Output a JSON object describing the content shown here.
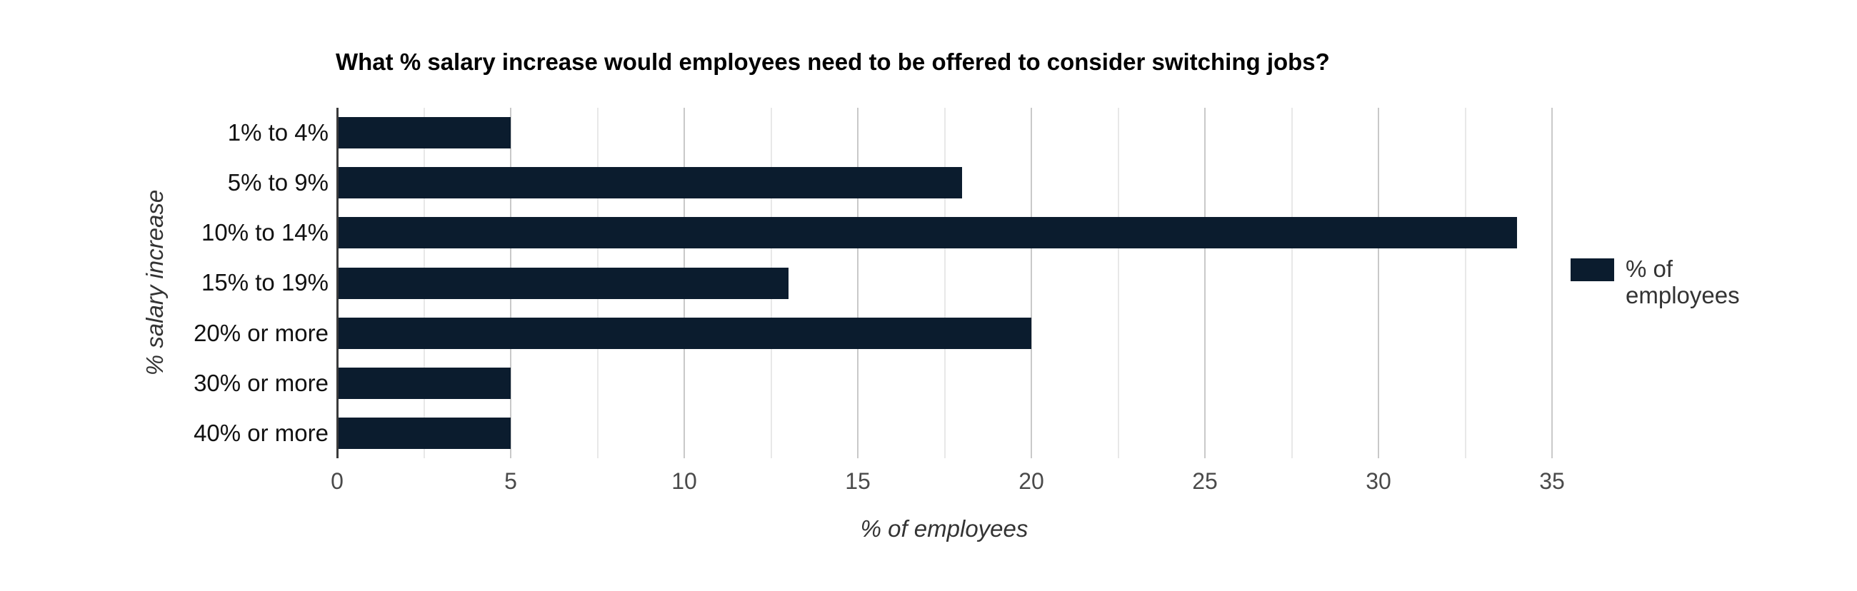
{
  "chart_data": {
    "type": "bar",
    "orientation": "horizontal",
    "title": "What % salary increase would employees need to be offered to consider switching jobs?",
    "categories": [
      "1% to 4%",
      "5% to 9%",
      "10% to 14%",
      "15% to 19%",
      "20% or more",
      "30% or more",
      "40% or more"
    ],
    "series": [
      {
        "name": "% of employees",
        "values": [
          5,
          18,
          34,
          13,
          20,
          5,
          5
        ]
      }
    ],
    "xlabel": "% of employees",
    "ylabel": "% salary increase",
    "xlim": [
      0,
      35
    ],
    "x_ticks": [
      0,
      5,
      10,
      15,
      20,
      25,
      30,
      35
    ],
    "minor_gridline_step": 2.5,
    "grid": true,
    "legend_position": "right",
    "colors": {
      "bar": "#0b1c2e",
      "axis_line": "#3a3a3a",
      "major_gridline": "#c9c9c9",
      "minor_gridline": "#e8e8e8",
      "tick_label": "#4a4a4a",
      "category_label": "#111111",
      "axis_title": "#333333",
      "title": "#000000",
      "legend_text": "#333333",
      "background": "#ffffff"
    }
  }
}
